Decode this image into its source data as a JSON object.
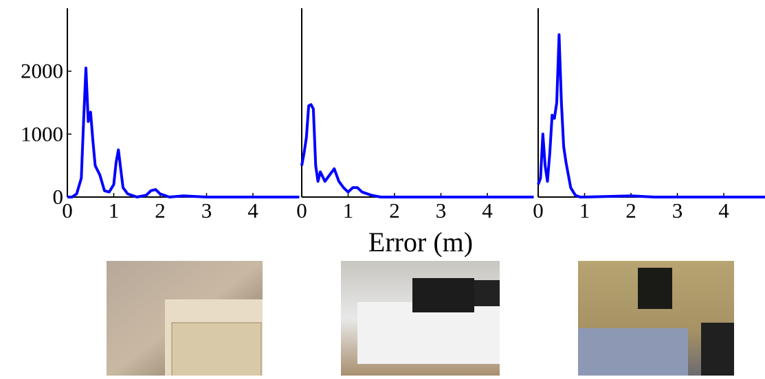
{
  "chart_data": [
    {
      "type": "line",
      "x": [
        0,
        0.1,
        0.2,
        0.3,
        0.35,
        0.4,
        0.45,
        0.5,
        0.55,
        0.6,
        0.7,
        0.8,
        0.9,
        1.0,
        1.05,
        1.1,
        1.15,
        1.2,
        1.3,
        1.5,
        1.7,
        1.8,
        1.9,
        2.0,
        2.2,
        2.5,
        3,
        4,
        5
      ],
      "series": [
        {
          "color": "#0000ff",
          "values": [
            0,
            0,
            50,
            300,
            1200,
            2050,
            1200,
            1350,
            900,
            500,
            350,
            100,
            80,
            200,
            550,
            750,
            450,
            150,
            50,
            0,
            30,
            100,
            120,
            50,
            0,
            20,
            0,
            0,
            0
          ]
        }
      ],
      "xlim": [
        0,
        5
      ],
      "ylim": [
        0,
        3000
      ],
      "xticks": [
        0,
        1,
        2,
        3,
        4
      ],
      "yticks": [
        0,
        1000,
        2000
      ]
    },
    {
      "type": "line",
      "x": [
        0,
        0.05,
        0.1,
        0.15,
        0.2,
        0.25,
        0.3,
        0.35,
        0.4,
        0.5,
        0.6,
        0.7,
        0.8,
        0.9,
        1.0,
        1.1,
        1.2,
        1.3,
        1.5,
        1.7,
        2,
        3,
        4,
        5
      ],
      "series": [
        {
          "color": "#0000ff",
          "values": [
            500,
            700,
            950,
            1450,
            1470,
            1400,
            500,
            250,
            400,
            250,
            350,
            450,
            250,
            150,
            80,
            150,
            150,
            80,
            30,
            0,
            0,
            0,
            0,
            0
          ]
        }
      ],
      "xlim": [
        0,
        5
      ],
      "ylim": [
        0,
        3000
      ],
      "xticks": [
        0,
        1,
        2,
        3,
        4
      ],
      "xlabel": "Error (m)"
    },
    {
      "type": "line",
      "x": [
        0,
        0.05,
        0.1,
        0.15,
        0.2,
        0.25,
        0.3,
        0.35,
        0.4,
        0.45,
        0.5,
        0.55,
        0.6,
        0.7,
        0.8,
        0.9,
        1,
        1.5,
        2,
        2.5,
        3,
        4,
        5
      ],
      "series": [
        {
          "color": "#0000ff",
          "values": [
            200,
            300,
            1000,
            500,
            250,
            700,
            1300,
            1250,
            1500,
            2580,
            1500,
            800,
            550,
            150,
            30,
            0,
            0,
            10,
            20,
            0,
            0,
            0,
            0
          ]
        }
      ],
      "xlim": [
        0,
        5
      ],
      "ylim": [
        0,
        3000
      ],
      "xticks": [
        0,
        1,
        2,
        3,
        4
      ]
    }
  ]
}
